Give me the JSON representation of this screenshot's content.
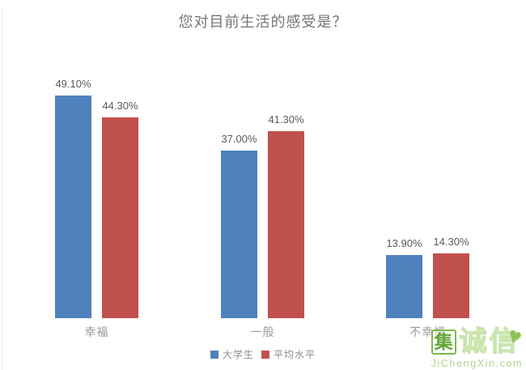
{
  "chart_data": {
    "type": "bar",
    "title": "您对目前生活的感受是？",
    "categories": [
      "幸福",
      "一般",
      "不幸福"
    ],
    "series": [
      {
        "name": "大学生",
        "color": "#4F81BD",
        "values": [
          49.1,
          37.0,
          13.9
        ],
        "data_labels": [
          "49.10%",
          "37.00%",
          "13.90%"
        ]
      },
      {
        "name": "平均水平",
        "color": "#C0504D",
        "values": [
          44.3,
          41.3,
          14.3
        ],
        "data_labels": [
          "44.30%",
          "41.30%",
          "14.30%"
        ]
      }
    ],
    "ylim": [
      0,
      55
    ],
    "grid": false,
    "axes_visible": false,
    "data_labels_shown": true,
    "legend_position": "bottom-center",
    "title_color": "#757575",
    "data_label_color": "#595959",
    "category_label_color": "#9a9a9a"
  },
  "watermark": {
    "boxed_char": "集",
    "outline_text": "诚信",
    "heart_icon": "♥",
    "domain": "JiChengXin.com",
    "primary_green": "#79ba4a",
    "light_green": "#b2d48e"
  }
}
